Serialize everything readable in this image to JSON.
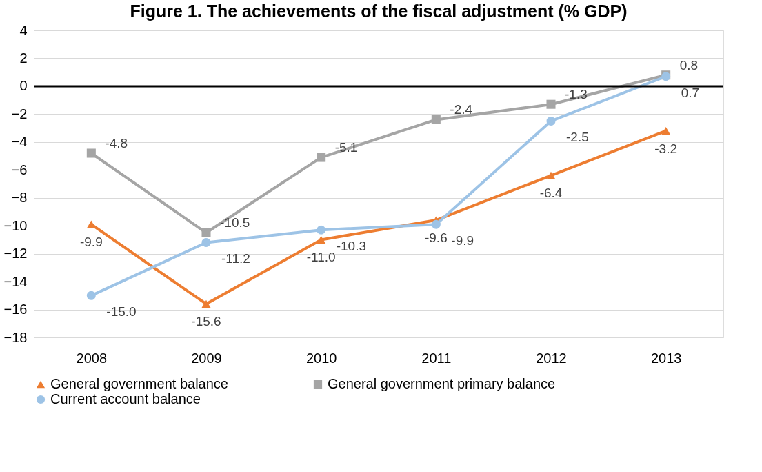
{
  "chart_data": {
    "type": "line",
    "title": "Figure 1. The achievements of the fiscal adjustment (% GDP)",
    "categories": [
      "2008",
      "2009",
      "2010",
      "2011",
      "2012",
      "2013"
    ],
    "series": [
      {
        "name": "General government balance",
        "color": "#ed7d31",
        "marker": "triangle",
        "values": [
          -9.9,
          -15.6,
          -11.0,
          -9.6,
          -6.4,
          -3.2
        ],
        "value_labels": [
          "-9.9",
          "-15.6",
          "-11.0",
          "-9.6",
          "-6.4",
          "-3.2"
        ]
      },
      {
        "name": "General government primary balance",
        "color": "#a5a5a5",
        "marker": "square",
        "values": [
          -4.8,
          -10.5,
          -5.1,
          -2.4,
          -1.3,
          0.8
        ],
        "value_labels": [
          "-4.8",
          "-10.5",
          "-5.1",
          "-2.4",
          "-1.3",
          "0.8"
        ]
      },
      {
        "name": "Current account balance",
        "color": "#9dc3e6",
        "marker": "circle",
        "values": [
          -15.0,
          -11.2,
          -10.3,
          -9.9,
          -2.5,
          0.7
        ],
        "value_labels": [
          "-15.0",
          "-11.2",
          "-10.3",
          "-9.9",
          "-2.5",
          "0.7"
        ]
      }
    ],
    "ylim": [
      -18,
      4
    ],
    "yticks": [
      -18,
      -16,
      -14,
      -12,
      -10,
      -8,
      -6,
      -4,
      -2,
      0,
      2,
      4
    ],
    "grid": "y",
    "legend": "bottom",
    "ref_lines": [
      {
        "axis": "y",
        "value": 0,
        "color": "#000000"
      }
    ]
  }
}
